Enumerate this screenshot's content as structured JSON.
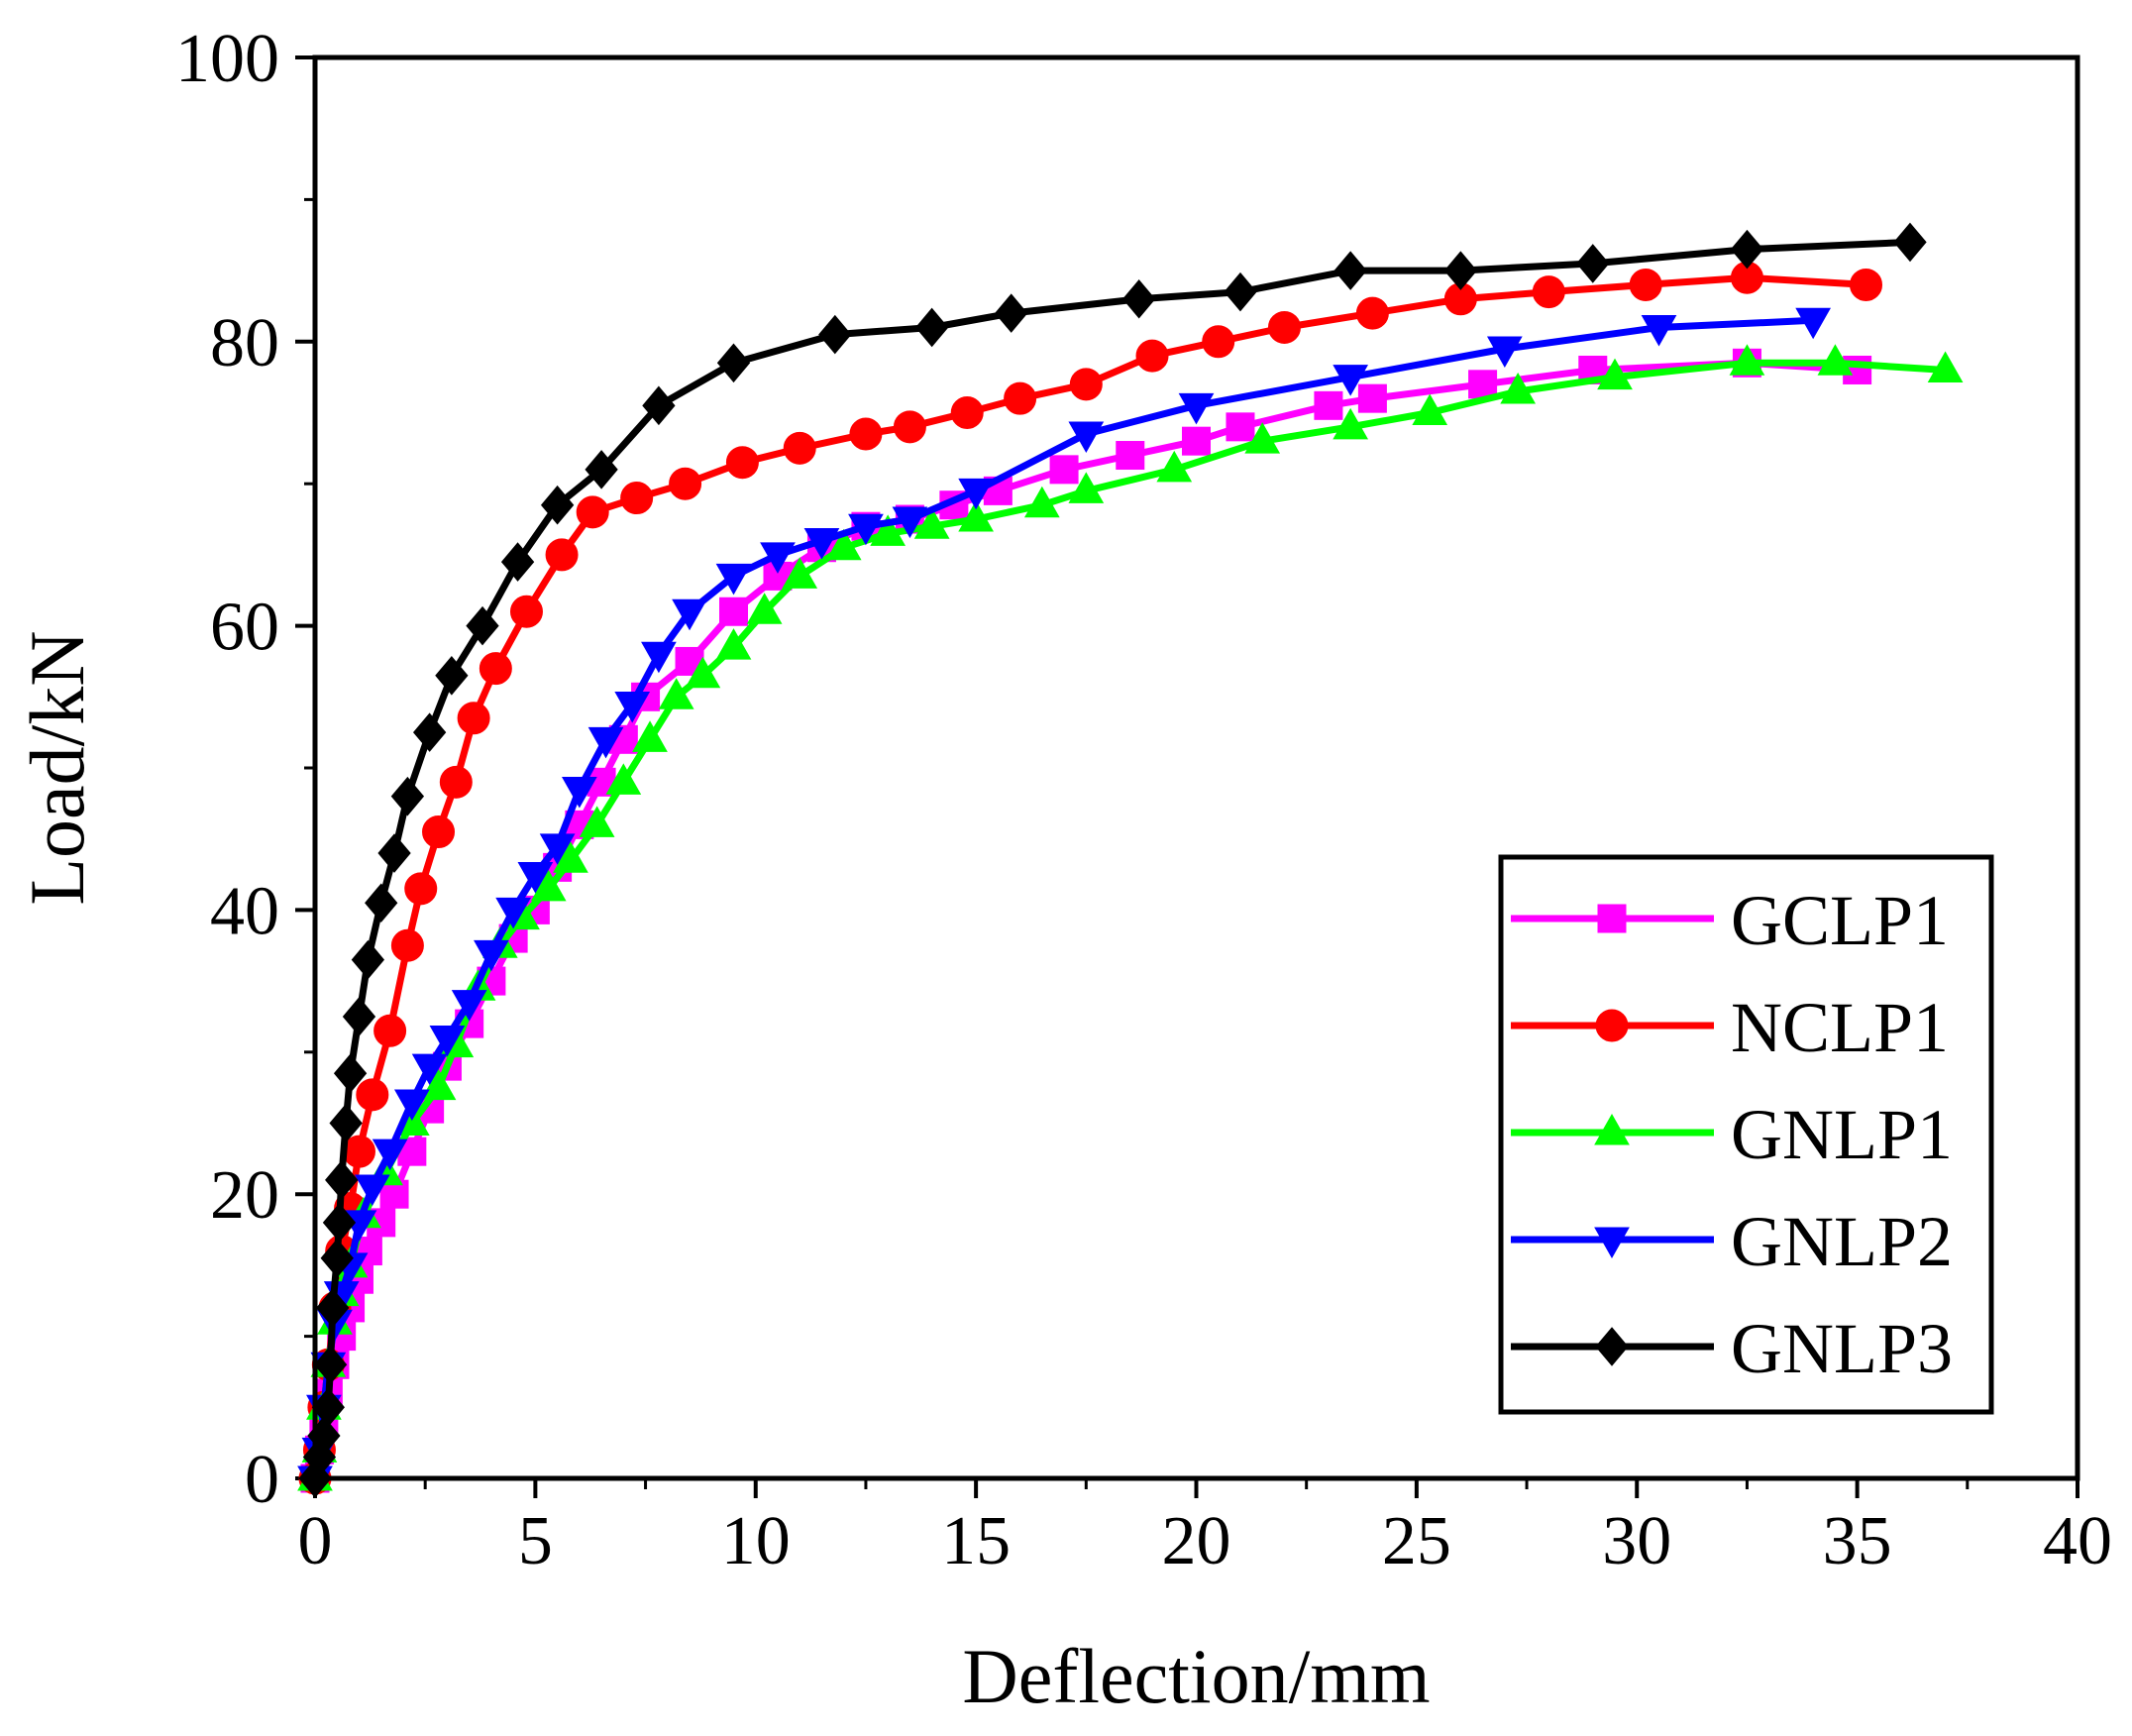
{
  "chart_data": {
    "type": "line",
    "title": "",
    "xlabel": "Deflection/mm",
    "ylabel": "Load/kN",
    "xlim": [
      0,
      40
    ],
    "ylim": [
      0,
      100
    ],
    "xticks": [
      0,
      5,
      10,
      15,
      20,
      25,
      30,
      35,
      40
    ],
    "yticks": [
      0,
      20,
      40,
      60,
      80,
      100
    ],
    "grid": false,
    "legend_position": "bottom-right",
    "series": [
      {
        "name": "GCLP1",
        "color": "#ff00ff",
        "marker": "square",
        "x": [
          0,
          0.1,
          0.2,
          0.3,
          0.45,
          0.6,
          0.8,
          1.0,
          1.2,
          1.5,
          1.8,
          2.2,
          2.6,
          3.0,
          3.5,
          4.0,
          4.5,
          5.0,
          5.5,
          6.0,
          6.5,
          7.0,
          7.5,
          8.5,
          9.5,
          10.5,
          11.5,
          12.5,
          13.5,
          14.5,
          15.5,
          17.0,
          18.5,
          20.0,
          21.0,
          23.0,
          24.0,
          26.5,
          29.0,
          32.5,
          35.0
        ],
        "y": [
          0,
          2,
          4,
          6,
          8,
          10,
          12,
          14,
          16,
          18,
          20,
          23,
          26,
          29,
          32,
          35,
          38,
          40,
          43,
          46,
          49,
          52,
          55,
          57.5,
          61,
          63.5,
          65.5,
          67,
          67.5,
          68.5,
          69.5,
          71,
          72,
          73,
          74,
          75.5,
          76,
          77,
          78,
          78.5,
          78
        ]
      },
      {
        "name": "NCLP1",
        "color": "#ff0000",
        "marker": "circle",
        "x": [
          0,
          0.1,
          0.2,
          0.3,
          0.45,
          0.6,
          0.8,
          1.0,
          1.3,
          1.7,
          2.1,
          2.4,
          2.8,
          3.2,
          3.6,
          4.1,
          4.8,
          5.6,
          6.3,
          7.3,
          8.4,
          9.7,
          11.0,
          12.5,
          13.5,
          14.8,
          16.0,
          17.5,
          19.0,
          20.5,
          22.0,
          24.0,
          26.0,
          28.0,
          30.2,
          32.5,
          35.2
        ],
        "y": [
          0,
          2,
          5,
          8,
          12,
          16,
          19,
          23,
          27,
          31.5,
          37.5,
          41.5,
          45.5,
          49,
          53.5,
          57,
          61,
          65,
          68,
          69,
          70,
          71.5,
          72.5,
          73.5,
          74,
          75,
          76,
          77,
          79,
          80,
          81,
          82,
          83,
          83.5,
          84,
          84.5,
          84
        ]
      },
      {
        "name": "GNLP1",
        "color": "#00ff00",
        "marker": "triangle-up",
        "x": [
          0,
          0.1,
          0.2,
          0.3,
          0.45,
          0.6,
          0.8,
          1.1,
          1.6,
          2.2,
          2.8,
          3.2,
          3.7,
          4.2,
          4.7,
          5.3,
          5.8,
          6.4,
          7.0,
          7.6,
          8.2,
          8.8,
          9.5,
          10.2,
          11.0,
          12.0,
          13.0,
          14.0,
          15.0,
          16.5,
          17.5,
          19.5,
          21.5,
          23.5,
          25.3,
          27.3,
          29.5,
          32.5,
          34.5,
          37.0
        ],
        "y": [
          0,
          2,
          5,
          8,
          11,
          13,
          15,
          18.5,
          21.5,
          25,
          27.5,
          30.5,
          34.5,
          37.5,
          39.5,
          41.5,
          43.5,
          46,
          49,
          52,
          55,
          56.5,
          58.5,
          61,
          63.5,
          65.5,
          66.5,
          67,
          67.5,
          68.5,
          69.5,
          71,
          73,
          74,
          75,
          76.5,
          77.5,
          78.5,
          78.5,
          78
        ]
      },
      {
        "name": "GNLP2",
        "color": "#0000ff",
        "marker": "triangle-down",
        "x": [
          0,
          0.1,
          0.2,
          0.3,
          0.45,
          0.6,
          0.8,
          1.0,
          1.3,
          1.7,
          2.2,
          2.6,
          3.0,
          3.5,
          4.0,
          4.5,
          5.0,
          5.5,
          6.0,
          6.6,
          7.2,
          7.8,
          8.5,
          9.5,
          10.5,
          11.5,
          12.5,
          13.5,
          15.0,
          17.5,
          20.0,
          23.5,
          27.0,
          30.5,
          34.0
        ],
        "y": [
          0,
          2,
          5,
          8,
          11,
          13,
          15,
          18,
          20.5,
          23,
          26.5,
          29,
          31,
          33.5,
          37,
          40,
          42.5,
          44.5,
          48.5,
          52,
          54.5,
          58,
          61,
          63.5,
          65,
          66,
          67,
          67.5,
          69.5,
          73.5,
          75.5,
          77.5,
          79.5,
          81,
          81.5
        ]
      },
      {
        "name": "GNLP3",
        "color": "#000000",
        "marker": "diamond",
        "x": [
          0,
          0.1,
          0.2,
          0.3,
          0.35,
          0.4,
          0.5,
          0.55,
          0.6,
          0.7,
          0.8,
          1.0,
          1.2,
          1.5,
          1.8,
          2.1,
          2.6,
          3.1,
          3.8,
          4.6,
          5.5,
          6.5,
          7.8,
          9.5,
          11.8,
          14.0,
          15.8,
          18.7,
          21.0,
          23.5,
          26.0,
          29.0,
          32.5,
          36.2
        ],
        "y": [
          0,
          1.5,
          3,
          5,
          8,
          12,
          15.5,
          18,
          21,
          25,
          28.5,
          32.5,
          36.5,
          40.5,
          44,
          48,
          52.5,
          56.5,
          60,
          64.5,
          68.5,
          71,
          75.5,
          78.5,
          80.5,
          81,
          82,
          83,
          83.5,
          85,
          85,
          85.5,
          86.5,
          87
        ]
      }
    ]
  }
}
